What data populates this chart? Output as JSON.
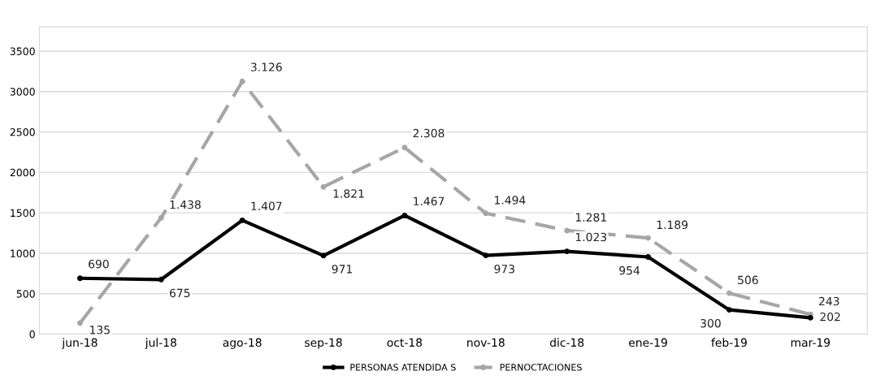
{
  "chart_data": {
    "type": "line",
    "categories": [
      "jun-18",
      "jul-18",
      "ago-18",
      "sep-18",
      "oct-18",
      "nov-18",
      "dic-18",
      "ene-19",
      "feb-19",
      "mar-19"
    ],
    "series": [
      {
        "name": "PERSONAS ATENDIDA S",
        "color": "#000000",
        "line_style": "solid",
        "values": [
          690,
          675,
          1407,
          971,
          1467,
          973,
          1023,
          954,
          300,
          202
        ],
        "value_labels": [
          "690",
          "675",
          "1.407",
          "971",
          "1.467",
          "973",
          "1.023",
          "954",
          "300",
          "202"
        ]
      },
      {
        "name": "PERNOCTACIONES",
        "color": "#a6a6a6",
        "line_style": "dashed",
        "values": [
          135,
          1438,
          3126,
          1821,
          2308,
          1494,
          1281,
          1189,
          506,
          243
        ],
        "value_labels": [
          "135",
          "1.438",
          "3.126",
          "1.821",
          "2.308",
          "1.494",
          "1.281",
          "1.189",
          "506",
          "243"
        ]
      }
    ],
    "ylim": [
      0,
      3800
    ],
    "yticks": [
      0,
      500,
      1000,
      1500,
      2000,
      2500,
      3000,
      3500
    ],
    "grid": "y",
    "legend": "bottom",
    "marker": "circle"
  }
}
